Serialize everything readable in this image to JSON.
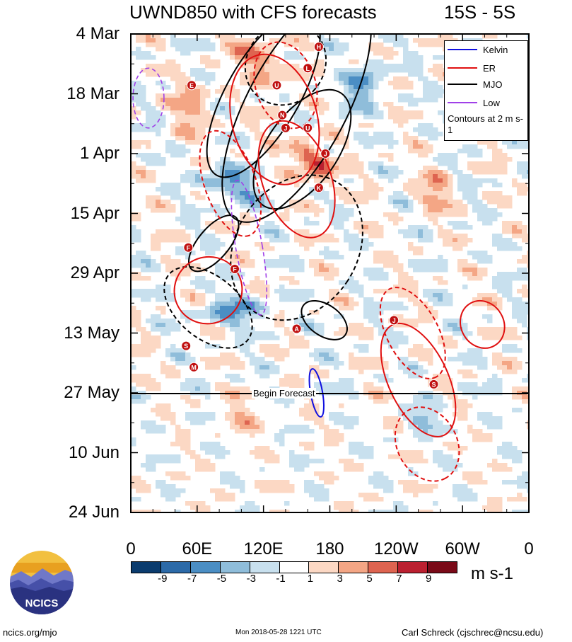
{
  "chart_data": {
    "type": "heatmap",
    "title": "UWND850 with CFS forecasts",
    "region": "15S - 5S",
    "y_axis": {
      "labels": [
        "4 Mar",
        "18 Mar",
        "1 Apr",
        "15 Apr",
        "29 Apr",
        "13 May",
        "27 May",
        "10 Jun",
        "24 Jun"
      ],
      "range_days": [
        0,
        112
      ]
    },
    "x_axis": {
      "labels": [
        "0",
        "60E",
        "120E",
        "180",
        "120W",
        "60W",
        "0"
      ],
      "range_deg_east": [
        0,
        360
      ]
    },
    "forecast_start": "27 May",
    "forecast_label": "Begin Forecast",
    "legend": [
      {
        "name": "Kelvin",
        "color": "#1010e0"
      },
      {
        "name": "ER",
        "color": "#e01010"
      },
      {
        "name": "MJO",
        "color": "#000000"
      },
      {
        "name": "Low",
        "color": "#a040e8"
      }
    ],
    "contour_note": "Contours at 2 m s-1",
    "colorbar": {
      "tick_labels": [
        "-9",
        "-7",
        "-5",
        "-3",
        "-1",
        "1",
        "3",
        "5",
        "7",
        "9"
      ],
      "units": "m s-1",
      "colors": [
        "#0b3c6e",
        "#2c6aa8",
        "#4b8ec4",
        "#8fbdda",
        "#c8e0ee",
        "#ffffff",
        "#fcd8c4",
        "#f4a685",
        "#de6450",
        "#bb2030",
        "#7a0a18"
      ]
    },
    "storm_markers": [
      {
        "label": "H",
        "lon": 170,
        "day": 3
      },
      {
        "label": "E",
        "lon": 55,
        "day": 12
      },
      {
        "label": "L",
        "lon": 160,
        "day": 8
      },
      {
        "label": "U",
        "lon": 132,
        "day": 12
      },
      {
        "label": "N",
        "lon": 137,
        "day": 19
      },
      {
        "label": "J",
        "lon": 140,
        "day": 22
      },
      {
        "label": "U",
        "lon": 160,
        "day": 22
      },
      {
        "label": "J",
        "lon": 176,
        "day": 28
      },
      {
        "label": "K",
        "lon": 170,
        "day": 36
      },
      {
        "label": "F",
        "lon": 52,
        "day": 50
      },
      {
        "label": "F",
        "lon": 94,
        "day": 55
      },
      {
        "label": "J",
        "lon": 238,
        "day": 67
      },
      {
        "label": "A",
        "lon": 150,
        "day": 69
      },
      {
        "label": "S",
        "lon": 50,
        "day": 73
      },
      {
        "label": "M",
        "lon": 57,
        "day": 78
      },
      {
        "label": "S",
        "lon": 274,
        "day": 82
      }
    ]
  },
  "footer": {
    "site": "ncics.org/mjo",
    "timestamp": "Mon 2018-05-28 1221 UTC",
    "author": "Carl Schreck (cjschrec@ncsu.edu)",
    "logo_text": "NCICS"
  }
}
